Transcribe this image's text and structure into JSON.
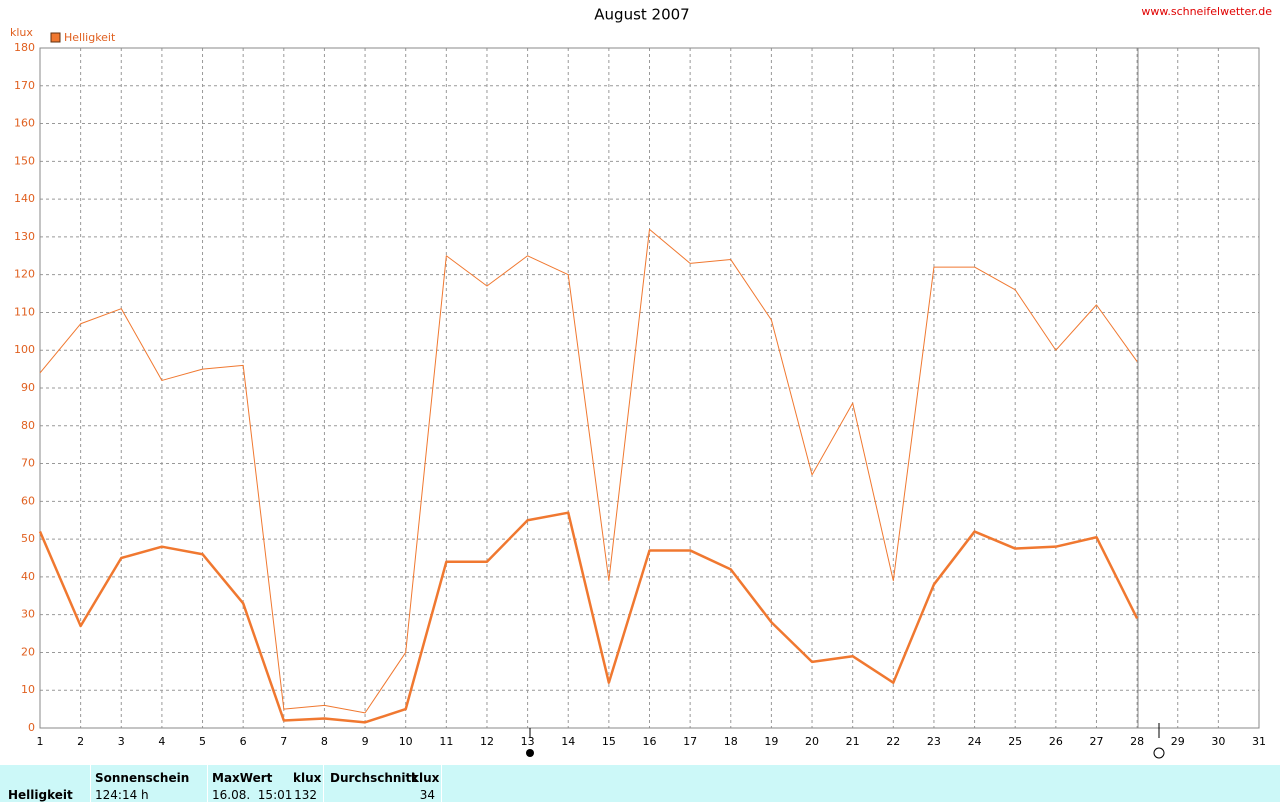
{
  "chart_data": {
    "type": "line",
    "title": "August 2007",
    "source": "www.schneifelwetter.de",
    "y_label": "klux",
    "legend": "Helligkeit",
    "x": [
      1,
      2,
      3,
      4,
      5,
      6,
      7,
      8,
      9,
      10,
      11,
      12,
      13,
      14,
      15,
      16,
      17,
      18,
      19,
      20,
      21,
      22,
      23,
      24,
      25,
      26,
      27,
      28
    ],
    "series": [
      {
        "color": "#f07830",
        "width": 1,
        "values": [
          94,
          107,
          111,
          92,
          95,
          96,
          5,
          6,
          4,
          20,
          125,
          117,
          125,
          120,
          39,
          132,
          123,
          124,
          108,
          67,
          86,
          39,
          122,
          122,
          116,
          100,
          112,
          97
        ]
      },
      {
        "color": "#f07830",
        "width": 2.5,
        "values": [
          52,
          27,
          45,
          48,
          46,
          33,
          2,
          2.5,
          1.5,
          5,
          44,
          44,
          55,
          57,
          12,
          47,
          47,
          42,
          28,
          17.5,
          19,
          12,
          38,
          52,
          47.5,
          48,
          50.5,
          29
        ]
      }
    ],
    "xlim": [
      1,
      31
    ],
    "xticks": [
      1,
      2,
      3,
      4,
      5,
      6,
      7,
      8,
      9,
      10,
      11,
      12,
      13,
      14,
      15,
      16,
      17,
      18,
      19,
      20,
      21,
      22,
      23,
      24,
      25,
      26,
      27,
      28,
      29,
      30,
      31
    ],
    "ylim": [
      0,
      180
    ],
    "yticks": [
      0,
      10,
      20,
      30,
      40,
      50,
      60,
      70,
      80,
      90,
      100,
      110,
      120,
      130,
      140,
      150,
      160,
      170,
      180
    ],
    "grid": true
  },
  "table": {
    "header": [
      "Sonnenschein",
      "MaxWert",
      "klux",
      "Durchschnitt",
      "klux"
    ],
    "row": [
      "Helligkeit",
      "124:14 h",
      "16.08.  15:01",
      "132",
      "34"
    ]
  }
}
